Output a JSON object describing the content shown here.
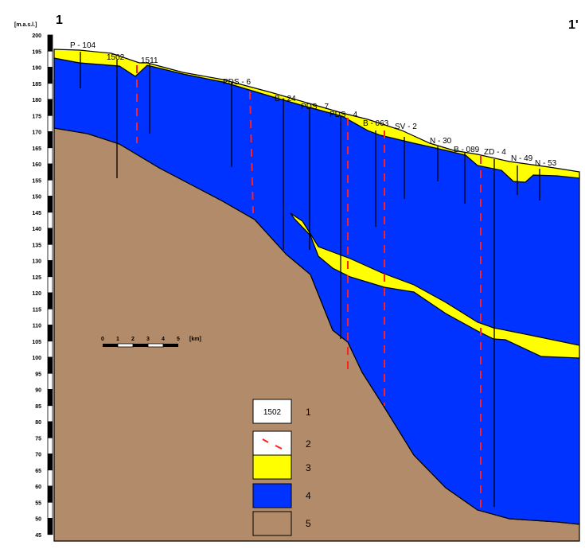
{
  "axis": {
    "unit": "[m.a.s.l.]",
    "ticks": [
      "200",
      "195",
      "190",
      "185",
      "180",
      "175",
      "170",
      "165",
      "160",
      "155",
      "150",
      "145",
      "140",
      "135",
      "130",
      "125",
      "120",
      "115",
      "110",
      "105",
      "100",
      "95",
      "90",
      "85",
      "80",
      "75",
      "70",
      "65",
      "60",
      "55",
      "50",
      "45"
    ]
  },
  "section": {
    "start_label": "1",
    "end_label": "1'"
  },
  "boreholes": [
    {
      "id": "P - 104"
    },
    {
      "id": "1502"
    },
    {
      "id": "1511"
    },
    {
      "id": "PDS - 6"
    },
    {
      "id": "B - 24"
    },
    {
      "id": "PDS - 7"
    },
    {
      "id": "PDS - 4"
    },
    {
      "id": "B - 063"
    },
    {
      "id": "SV - 2"
    },
    {
      "id": "N - 30"
    },
    {
      "id": "B - 089"
    },
    {
      "id": "ZD - 4"
    },
    {
      "id": "N - 49"
    },
    {
      "id": "N - 53"
    }
  ],
  "scalebar": {
    "ticks": [
      "0",
      "1",
      "2",
      "3",
      "4",
      "5"
    ],
    "unit": "[km]"
  },
  "legend": [
    {
      "number": "1",
      "sample": "1502"
    },
    {
      "number": "2"
    },
    {
      "number": "3",
      "color": "#ffff00"
    },
    {
      "number": "4",
      "color": "#0033ff"
    },
    {
      "number": "5",
      "color": "#b28c6a"
    }
  ],
  "colors": {
    "clay": "#b28c6a",
    "aquifer": "#0033ff",
    "sand": "#ffff00",
    "fault": "#ff2020"
  }
}
